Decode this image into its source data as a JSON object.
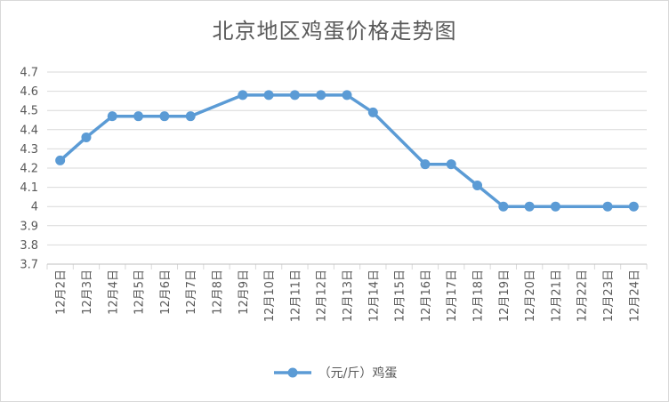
{
  "chart_data": {
    "type": "line",
    "title": "北京地区鸡蛋价格走势图",
    "xlabel": "",
    "ylabel": "",
    "ylim": [
      3.7,
      4.7
    ],
    "yticks": [
      "3.7",
      "3.8",
      "3.9",
      "4",
      "4.1",
      "4.2",
      "4.3",
      "4.4",
      "4.5",
      "4.6",
      "4.7"
    ],
    "grid": true,
    "legend_position": "bottom",
    "categories": [
      "12月2日",
      "12月3日",
      "12月4日",
      "12月5日",
      "12月6日",
      "12月7日",
      "12月8日",
      "12月9日",
      "12月10日",
      "12月11日",
      "12月12日",
      "12月13日",
      "12月14日",
      "12月15日",
      "12月16日",
      "12月17日",
      "12月18日",
      "12月19日",
      "12月20日",
      "12月21日",
      "12月22日",
      "12月23日",
      "12月24日"
    ],
    "series": [
      {
        "name": "（元/斤）鸡蛋",
        "color": "#5b9bd5",
        "points": [
          {
            "x": "12月2日",
            "y": 4.24
          },
          {
            "x": "12月3日",
            "y": 4.36
          },
          {
            "x": "12月4日",
            "y": 4.47
          },
          {
            "x": "12月5日",
            "y": 4.47
          },
          {
            "x": "12月6日",
            "y": 4.47
          },
          {
            "x": "12月7日",
            "y": 4.47
          },
          {
            "x": "12月9日",
            "y": 4.58
          },
          {
            "x": "12月10日",
            "y": 4.58
          },
          {
            "x": "12月11日",
            "y": 4.58
          },
          {
            "x": "12月12日",
            "y": 4.58
          },
          {
            "x": "12月13日",
            "y": 4.58
          },
          {
            "x": "12月14日",
            "y": 4.49
          },
          {
            "x": "12月16日",
            "y": 4.22
          },
          {
            "x": "12月17日",
            "y": 4.22
          },
          {
            "x": "12月18日",
            "y": 4.11
          },
          {
            "x": "12月19日",
            "y": 4.0
          },
          {
            "x": "12月20日",
            "y": 4.0
          },
          {
            "x": "12月21日",
            "y": 4.0
          },
          {
            "x": "12月23日",
            "y": 4.0
          },
          {
            "x": "12月24日",
            "y": 4.0
          }
        ]
      }
    ]
  }
}
